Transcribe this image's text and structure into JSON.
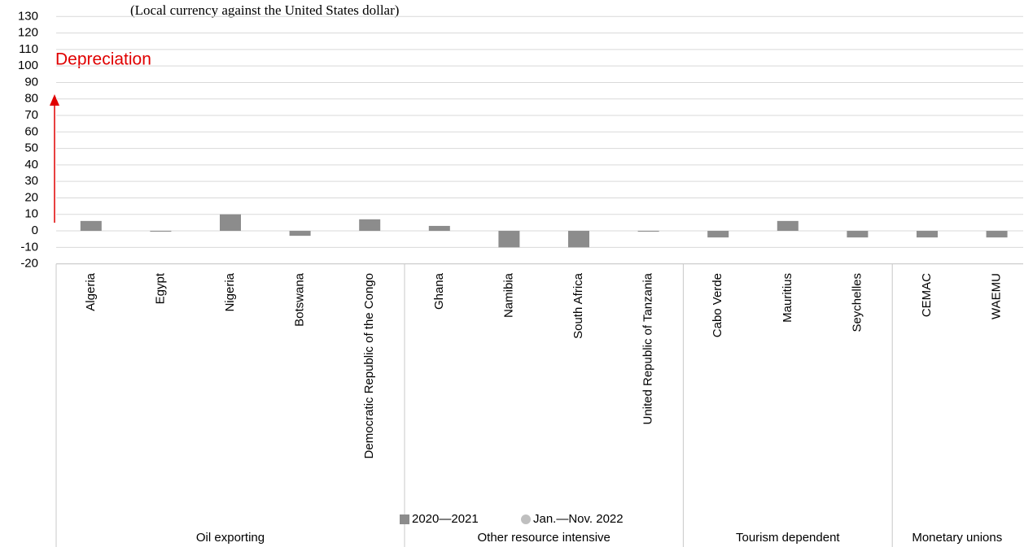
{
  "chart_data": {
    "type": "bar",
    "subtitle": "(Local currency against the United States dollar)",
    "annotation": "Depreciation",
    "groups": [
      {
        "name": "Oil exporting",
        "categories": [
          "Algeria",
          "Egypt",
          "Nigeria",
          "Botswana",
          "Democratic Republic of the Congo"
        ]
      },
      {
        "name": "Other resource intensive",
        "categories": [
          "Ghana",
          "Namibia",
          "South Africa",
          "United Republic of Tanzania"
        ]
      },
      {
        "name": "Tourism dependent",
        "categories": [
          "Cabo Verde",
          "Mauritius",
          "Seychelles"
        ]
      },
      {
        "name": "Monetary unions",
        "categories": [
          "CEMAC",
          "WAEMU"
        ]
      }
    ],
    "series": [
      {
        "name": "2020—2021",
        "color": "#8c8c8c",
        "values": [
          6,
          -0.5,
          10,
          -3,
          7,
          3,
          -10,
          -10,
          0,
          -4,
          6,
          -4,
          -4,
          -4
        ]
      },
      {
        "name": "Jan.—Nov. 2022",
        "color": "#bfbfbf",
        "values": [
          null,
          null,
          null,
          null,
          null,
          null,
          null,
          null,
          null,
          null,
          null,
          null,
          null,
          null
        ]
      }
    ],
    "ylim": [
      -20,
      130
    ],
    "yticks": [
      -20,
      -10,
      0,
      10,
      20,
      30,
      40,
      50,
      60,
      70,
      80,
      90,
      100,
      110,
      120,
      130
    ],
    "grid": true
  }
}
